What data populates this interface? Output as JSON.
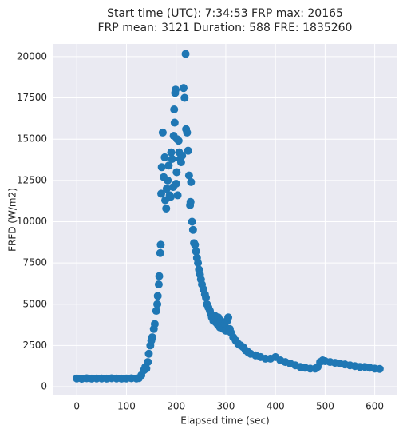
{
  "chart_data": {
    "type": "scatter",
    "title": [
      "Start time (UTC): 7:34:53 FRP max: 20165",
      "FRP mean: 3121 Duration: 588 FRE: 1835260"
    ],
    "x_label": "Elapsed time (sec)",
    "y_label": "FRFD (W/m2)",
    "color": "#1f77b4",
    "grid": true,
    "xlim": [
      -47,
      644
    ],
    "xticks": [
      0,
      100,
      200,
      300,
      400,
      500,
      600
    ],
    "ylim": [
      -530,
      20770
    ],
    "yticks": [
      0,
      2500,
      5000,
      7500,
      10000,
      12500,
      15000,
      17500,
      20000
    ],
    "x": [
      0,
      10,
      20,
      30,
      40,
      50,
      60,
      70,
      80,
      90,
      100,
      110,
      120,
      125,
      130,
      135,
      138,
      140,
      143,
      145,
      148,
      150,
      152,
      155,
      157,
      160,
      162,
      163,
      165,
      166,
      168,
      169,
      170,
      171,
      173,
      175,
      177,
      178,
      180,
      181,
      183,
      185,
      187,
      189,
      190,
      192,
      194,
      195,
      196,
      197,
      198,
      199,
      200,
      201,
      202,
      203,
      205,
      206,
      208,
      210,
      212,
      215,
      217,
      219,
      220,
      222,
      224,
      226,
      228,
      229,
      230,
      232,
      234,
      236,
      238,
      240,
      242,
      244,
      246,
      248,
      250,
      252,
      255,
      258,
      260,
      262,
      265,
      268,
      270,
      272,
      275,
      278,
      280,
      283,
      285,
      288,
      290,
      293,
      295,
      298,
      300,
      303,
      305,
      308,
      310,
      315,
      320,
      325,
      330,
      335,
      340,
      345,
      350,
      360,
      370,
      380,
      390,
      400,
      410,
      420,
      430,
      440,
      450,
      460,
      470,
      480,
      485,
      490,
      495,
      500,
      510,
      520,
      530,
      540,
      550,
      560,
      570,
      580,
      590,
      600,
      610
    ],
    "values": [
      500,
      480,
      510,
      490,
      500,
      500,
      490,
      510,
      500,
      490,
      500,
      510,
      500,
      520,
      700,
      1000,
      1200,
      1100,
      1500,
      2000,
      2500,
      2800,
      3000,
      3500,
      3800,
      4600,
      5000,
      5500,
      6200,
      6700,
      8100,
      8600,
      11700,
      13300,
      15400,
      12700,
      13900,
      11300,
      10800,
      12000,
      12500,
      13400,
      11600,
      11500,
      14200,
      13800,
      12100,
      15200,
      16800,
      16000,
      17800,
      18000,
      12300,
      13000,
      15000,
      11600,
      14900,
      14200,
      13800,
      13600,
      14000,
      18100,
      17500,
      20165,
      15600,
      15400,
      14300,
      12800,
      11000,
      11200,
      12400,
      10000,
      9500,
      8700,
      8600,
      8200,
      7800,
      7500,
      7100,
      6800,
      6500,
      6200,
      5900,
      5600,
      5400,
      5000,
      4800,
      4600,
      4400,
      4200,
      4000,
      4300,
      3900,
      3800,
      4200,
      3600,
      4000,
      3700,
      3500,
      3800,
      3400,
      4000,
      4200,
      3500,
      3300,
      3000,
      2800,
      2600,
      2500,
      2400,
      2200,
      2100,
      2000,
      1900,
      1800,
      1700,
      1700,
      1800,
      1600,
      1500,
      1400,
      1300,
      1200,
      1150,
      1100,
      1100,
      1200,
      1500,
      1600,
      1550,
      1500,
      1450,
      1400,
      1350,
      1300,
      1250,
      1200,
      1200,
      1150,
      1100,
      1080
    ]
  }
}
